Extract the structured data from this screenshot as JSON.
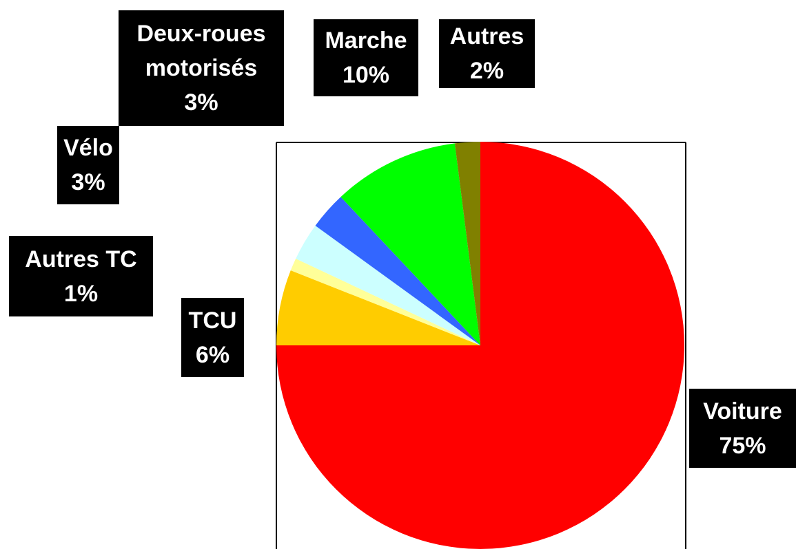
{
  "chart_data": {
    "type": "pie",
    "categories": [
      "Voiture",
      "TCU",
      "Autres TC",
      "Vélo",
      "Deux-roues motorisés",
      "Marche",
      "Autres"
    ],
    "values": [
      75,
      6,
      1,
      3,
      3,
      10,
      2
    ],
    "value_labels": [
      "75%",
      "6%",
      "1%",
      "3%",
      "3%",
      "10%",
      "2%"
    ],
    "colors": [
      "#ff0000",
      "#ffcc00",
      "#ffff99",
      "#ccffff",
      "#3366ff",
      "#00ff00",
      "#808000"
    ]
  }
}
